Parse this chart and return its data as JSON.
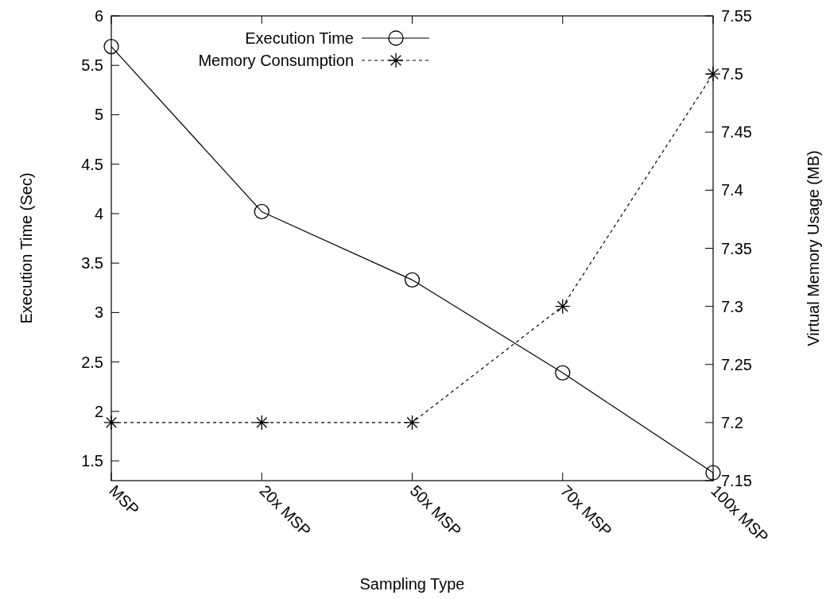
{
  "chart_data": {
    "type": "line",
    "xlabel": "Sampling Type",
    "ylabel": "Execution Time (Sec)",
    "y2label": "Virtual Memory Usage (MB)",
    "categories": [
      "MSP",
      "20x MSP",
      "50x MSP",
      "70x MSP",
      "100x MSP"
    ],
    "series": [
      {
        "name": "Execution Time",
        "color": "#000000",
        "values": [
          5.69,
          4.02,
          3.33,
          2.39,
          1.38
        ],
        "marker": "circle",
        "line_style": "solid"
      },
      {
        "name": "Memory Consumption",
        "color": "#000000",
        "values": [
          7.2,
          7.2,
          7.2,
          7.3,
          7.5
        ],
        "marker": "cross",
        "line_style": "dashed",
        "axis": "y2"
      }
    ],
    "ylim": [
      1.3,
      6
    ],
    "yticks": [
      1.5,
      2,
      2.5,
      3,
      3.5,
      4,
      4.5,
      5,
      5.5,
      6
    ],
    "y2lim": [
      7.15,
      7.55
    ],
    "y2ticks": [
      7.15,
      7.2,
      7.25,
      7.3,
      7.35,
      7.4,
      7.45,
      7.5,
      7.55
    ],
    "legend": "top",
    "grid": false
  }
}
